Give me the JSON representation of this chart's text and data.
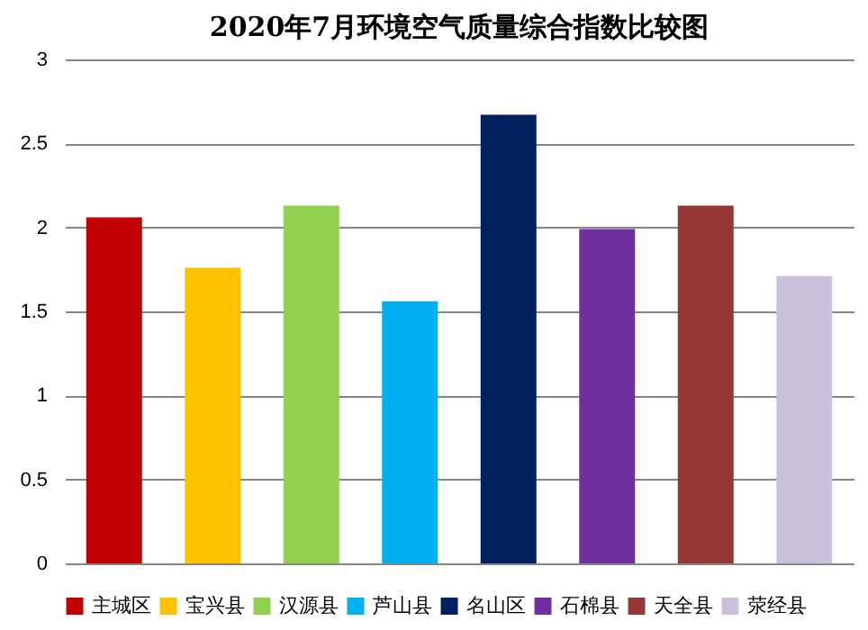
{
  "chart_data": {
    "type": "bar",
    "title": "2020年7月环境空气质量综合指数比较图",
    "categories": [
      null
    ],
    "series": [
      {
        "name": "主城区",
        "color": "#c00000",
        "values": [
          2.06
        ]
      },
      {
        "name": "宝兴县",
        "color": "#ffc000",
        "values": [
          1.76
        ]
      },
      {
        "name": "汉源县",
        "color": "#92d050",
        "values": [
          2.13
        ]
      },
      {
        "name": "芦山县",
        "color": "#00b0f0",
        "values": [
          1.56
        ]
      },
      {
        "name": "名山区",
        "color": "#002060",
        "values": [
          2.67
        ]
      },
      {
        "name": "石棉县",
        "color": "#7030a0",
        "values": [
          1.99
        ]
      },
      {
        "name": "天全县",
        "color": "#953735",
        "values": [
          2.13
        ]
      },
      {
        "name": "荥经县",
        "color": "#ccc1da",
        "values": [
          1.71
        ]
      }
    ],
    "ylim": [
      0,
      3
    ],
    "yticks": [
      0,
      0.5,
      1,
      1.5,
      2,
      2.5,
      3
    ],
    "grid": "y",
    "legend": "bottom",
    "tick_labels": "y"
  }
}
